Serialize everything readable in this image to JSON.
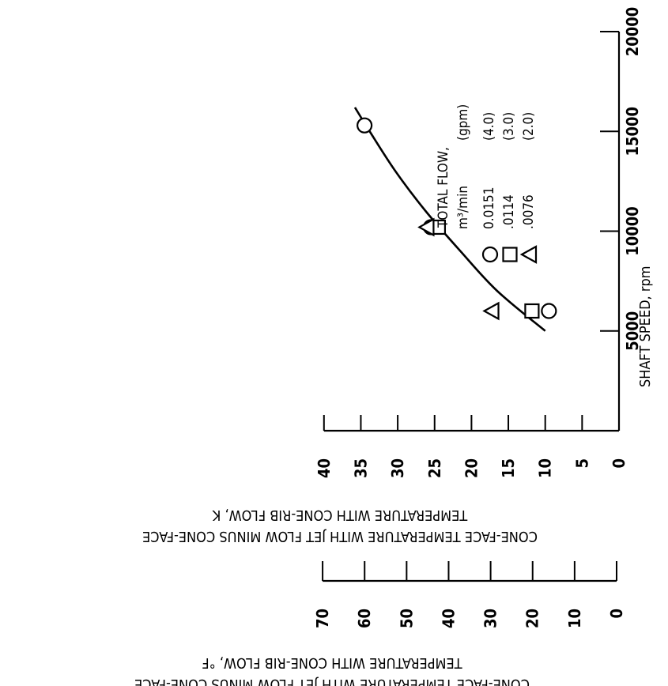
{
  "chart_data": {
    "type": "scatter",
    "xlabel": "SHAFT SPEED, rpm",
    "xticks": [
      0,
      5000,
      10000,
      15000,
      20000
    ],
    "xlim": [
      0,
      20000
    ],
    "ylabel_k_line1": "CONE-FACE TEMPERATURE WITH JET FLOW MINUS CONE-FACE",
    "ylabel_k_line2": "TEMPERATURE WITH CONE-RIB FLOW, K",
    "yticks_k": [
      0,
      5,
      10,
      15,
      20,
      25,
      30,
      35,
      40
    ],
    "ylim_k": [
      0,
      40
    ],
    "ylabel_f_line1": "CONE-FACE TEMPERATURE WITH JET FLOW MINUS CONE-FACE",
    "ylabel_f_line2": "TEMPERATURE WITH CONE-RIB FLOW, °F",
    "yticks_f": [
      0,
      10,
      20,
      30,
      40,
      50,
      60,
      70
    ],
    "ylim_f": [
      0,
      70
    ],
    "legend": {
      "title": "TOTAL FLOW,",
      "col1_header": "m³/min",
      "col2_header": "(gpm)",
      "placement": "right"
    },
    "series": [
      {
        "name": "0.0151",
        "gpm": "(4.0)",
        "marker": "circle",
        "points": [
          [
            6000,
            9.5
          ],
          [
            10200,
            25.5
          ],
          [
            15300,
            34.5
          ]
        ]
      },
      {
        "name": ".0114",
        "gpm": "(3.0)",
        "marker": "square",
        "points": [
          [
            6000,
            11.8
          ],
          [
            10200,
            24.5
          ]
        ]
      },
      {
        "name": ".0076",
        "gpm": "(2.0)",
        "marker": "triangle",
        "points": [
          [
            6000,
            17.2
          ],
          [
            10200,
            26.0
          ]
        ]
      }
    ],
    "fit_curve": [
      [
        5000,
        10.0
      ],
      [
        7000,
        16.5
      ],
      [
        9000,
        21.5
      ],
      [
        11000,
        26.2
      ],
      [
        13000,
        30.3
      ],
      [
        15000,
        33.8
      ],
      [
        16200,
        35.8
      ]
    ]
  }
}
